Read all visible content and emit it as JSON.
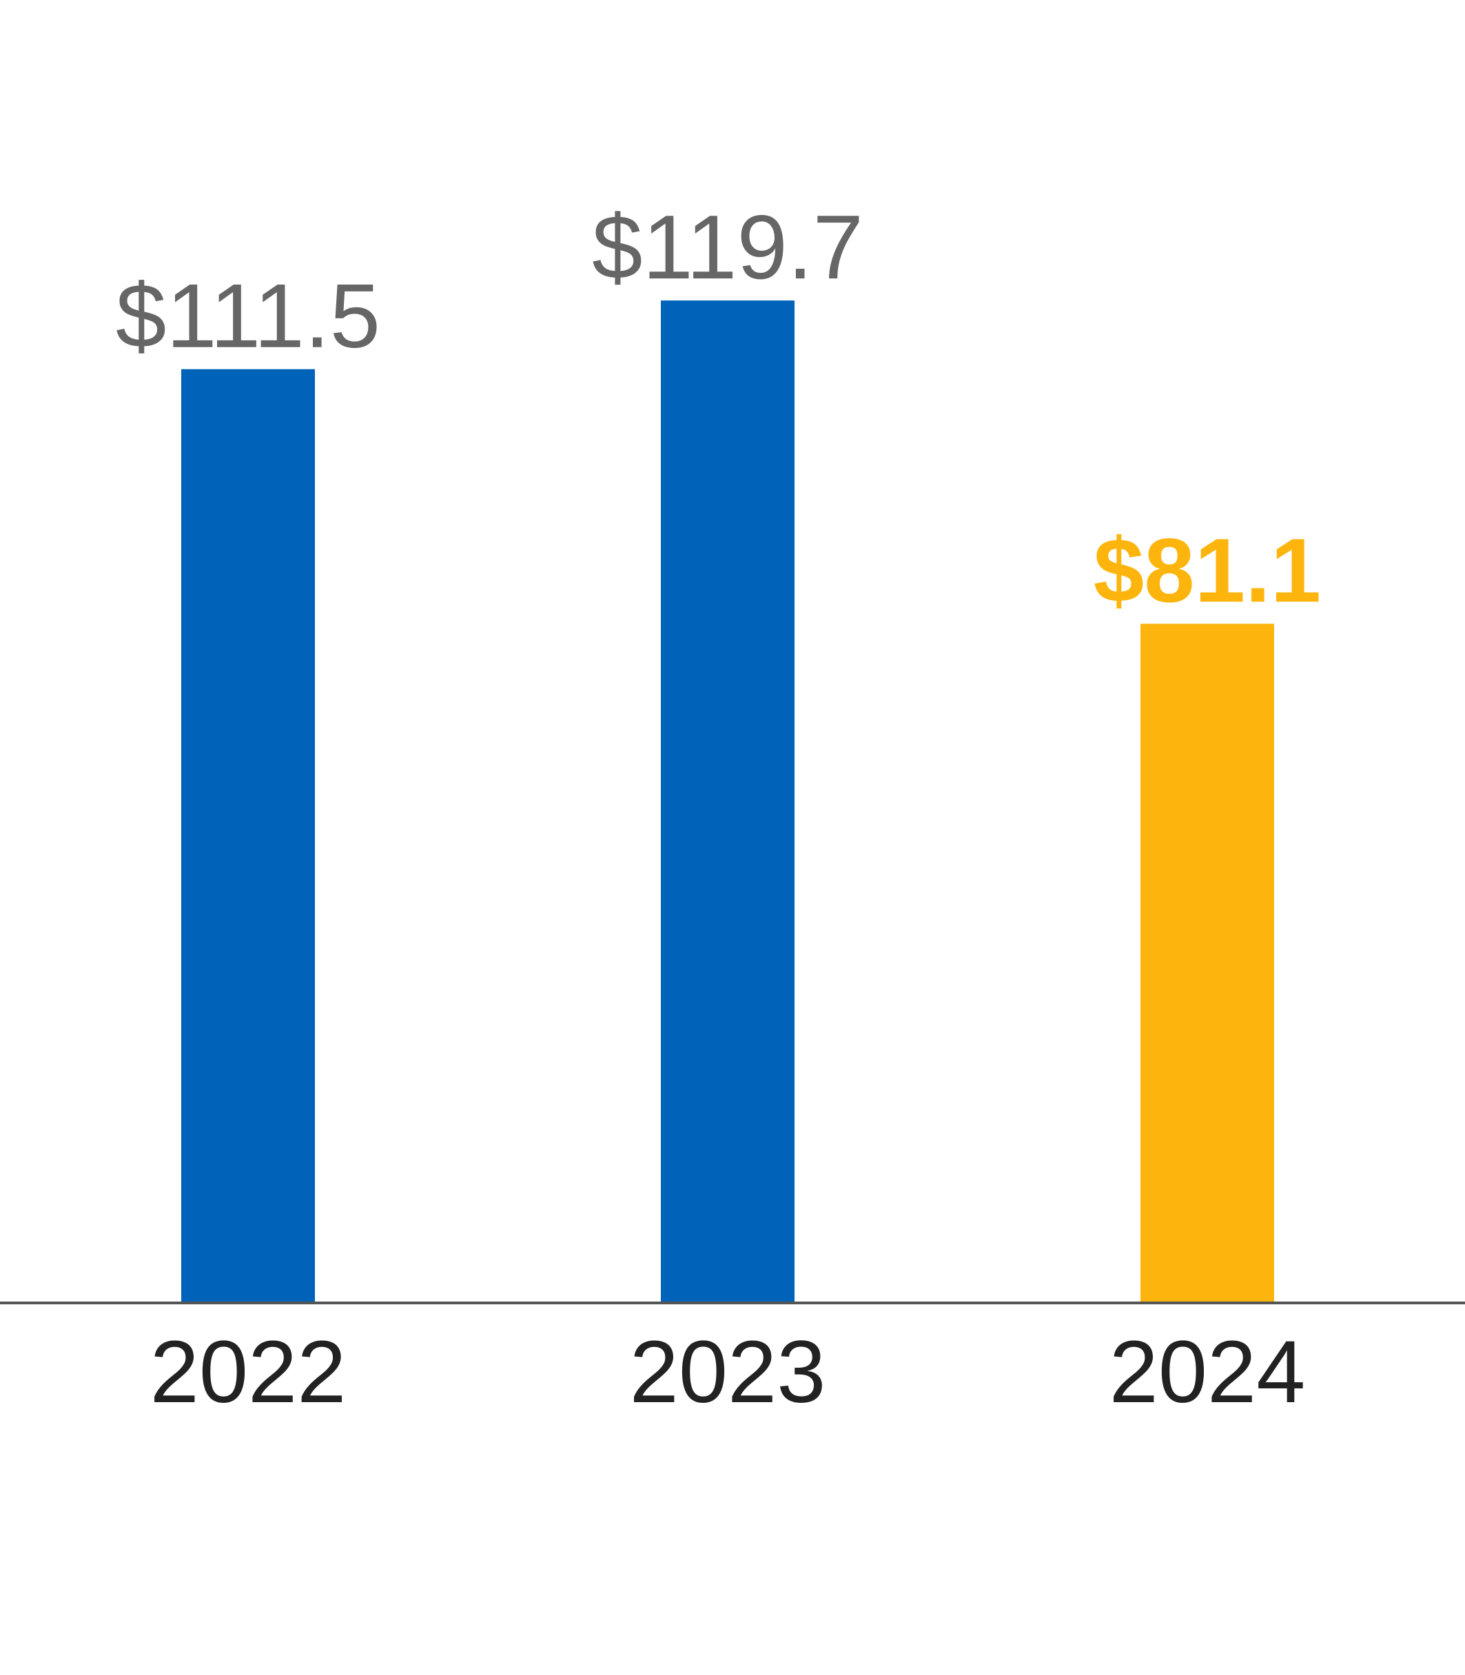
{
  "chart_data": {
    "type": "bar",
    "categories": [
      "2022",
      "2023",
      "2024"
    ],
    "values": [
      111.5,
      119.7,
      81.1
    ],
    "value_labels": [
      "$111.5",
      "$119.7",
      "$81.1"
    ],
    "bar_colors": [
      "#0063BA",
      "#0063BA",
      "#FDB50E"
    ],
    "value_label_colors": [
      "#666666",
      "#666666",
      "#FDB50E"
    ],
    "highlight_index": 2,
    "axis_color": "#555555",
    "title": "",
    "xlabel": "",
    "ylabel": "",
    "ylim": [
      0,
      136
    ],
    "grid": false,
    "legend": "none"
  }
}
